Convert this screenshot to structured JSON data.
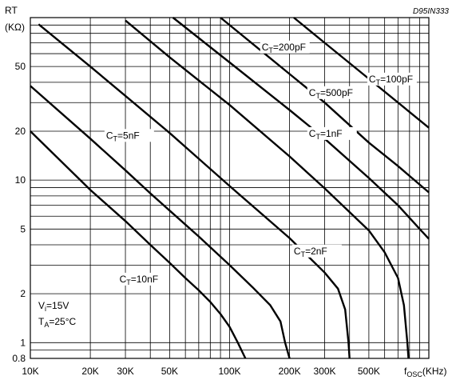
{
  "chart_data": {
    "type": "line",
    "reference": "D95IN333",
    "ylabel": {
      "main": "RT",
      "unit": "(KΩ)"
    },
    "xlabel": {
      "main": "f",
      "sub": "OSC",
      "unit": "(KHz)"
    },
    "x_scale": "log",
    "y_scale": "log",
    "xlim": [
      10,
      1000
    ],
    "ylim": [
      0.8,
      100
    ],
    "x_tick_labels": [
      {
        "v": 10,
        "t": "10K"
      },
      {
        "v": 20,
        "t": "20K"
      },
      {
        "v": 30,
        "t": "30K"
      },
      {
        "v": 50,
        "t": "50K"
      },
      {
        "v": 100,
        "t": "100K"
      },
      {
        "v": 200,
        "t": "200K"
      },
      {
        "v": 300,
        "t": "300K"
      },
      {
        "v": 500,
        "t": "500K"
      }
    ],
    "y_tick_labels": [
      {
        "v": 0.8,
        "t": "0.8"
      },
      {
        "v": 1,
        "t": "1"
      },
      {
        "v": 2,
        "t": "2"
      },
      {
        "v": 5,
        "t": "5"
      },
      {
        "v": 10,
        "t": "10"
      },
      {
        "v": 20,
        "t": "20"
      },
      {
        "v": 50,
        "t": "50"
      }
    ],
    "x_grid": [
      10,
      20,
      30,
      40,
      50,
      60,
      70,
      80,
      90,
      100,
      200,
      300,
      400,
      500,
      600,
      700,
      800,
      900,
      1000
    ],
    "y_grid": [
      0.8,
      0.9,
      1,
      2,
      3,
      4,
      5,
      6,
      7,
      8,
      9,
      10,
      20,
      30,
      40,
      50,
      60,
      70,
      80,
      90,
      100
    ],
    "series": [
      {
        "name": "C=10nF",
        "sub": "T",
        "base": "C",
        "rest": "=10nF",
        "points": [
          [
            10,
            20
          ],
          [
            20,
            8.7
          ],
          [
            30,
            5.6
          ],
          [
            40,
            4.0
          ],
          [
            50,
            3.1
          ],
          [
            60,
            2.5
          ],
          [
            70,
            2.1
          ],
          [
            80,
            1.78
          ],
          [
            90,
            1.5
          ],
          [
            100,
            1.25
          ],
          [
            110,
            1.0
          ],
          [
            120,
            0.8
          ]
        ],
        "label_at": [
          28,
          2.35
        ]
      },
      {
        "name": "C=5nF",
        "sub": "T",
        "base": "C",
        "rest": "=5nF",
        "points": [
          [
            10,
            38
          ],
          [
            20,
            18
          ],
          [
            30,
            11.5
          ],
          [
            40,
            8.3
          ],
          [
            50,
            6.5
          ],
          [
            70,
            4.5
          ],
          [
            100,
            3.0
          ],
          [
            130,
            2.2
          ],
          [
            160,
            1.7
          ],
          [
            180,
            1.35
          ],
          [
            190,
            1.0
          ],
          [
            200,
            0.8
          ]
        ],
        "label_at": [
          24,
          18
        ]
      },
      {
        "name": "C=2nF",
        "sub": "T",
        "base": "C",
        "rest": "=2nF",
        "points": [
          [
            11,
            91
          ],
          [
            20,
            50
          ],
          [
            30,
            33
          ],
          [
            50,
            19.5
          ],
          [
            100,
            9.2
          ],
          [
            200,
            4.4
          ],
          [
            300,
            2.7
          ],
          [
            350,
            2.15
          ],
          [
            380,
            1.6
          ],
          [
            395,
            1.0
          ],
          [
            400,
            0.8
          ]
        ],
        "label_at": [
          210,
          3.5
        ]
      },
      {
        "name": "C=1nF",
        "sub": "T",
        "base": "C",
        "rest": "=1nF",
        "points": [
          [
            30,
            96
          ],
          [
            50,
            57
          ],
          [
            100,
            29
          ],
          [
            200,
            14
          ],
          [
            300,
            8.9
          ],
          [
            500,
            4.9
          ],
          [
            600,
            3.6
          ],
          [
            700,
            2.5
          ],
          [
            750,
            1.7
          ],
          [
            780,
            1.0
          ],
          [
            790,
            0.8
          ]
        ],
        "label_at": [
          250,
          18.5
        ]
      },
      {
        "name": "C=500pF",
        "sub": "T",
        "base": "C",
        "rest": "=500pF",
        "points": [
          [
            52,
            100
          ],
          [
            100,
            53
          ],
          [
            200,
            27
          ],
          [
            300,
            18
          ],
          [
            500,
            10.3
          ],
          [
            700,
            7.0
          ],
          [
            900,
            5.0
          ],
          [
            1000,
            4.35
          ]
        ],
        "label_at": [
          250,
          33
        ]
      },
      {
        "name": "C=200pF",
        "sub": "T",
        "base": "C",
        "rest": "=200pF",
        "points": [
          [
            90,
            100
          ],
          [
            150,
            60
          ],
          [
            200,
            45
          ],
          [
            300,
            30
          ],
          [
            500,
            17
          ],
          [
            700,
            12.2
          ],
          [
            1000,
            8.4
          ]
        ],
        "label_at": [
          145,
          63
        ]
      },
      {
        "name": "C=100pF",
        "sub": "T",
        "base": "C",
        "rest": "=100pF",
        "points": [
          [
            210,
            100
          ],
          [
            300,
            70
          ],
          [
            500,
            42
          ],
          [
            700,
            30
          ],
          [
            1000,
            21
          ]
        ],
        "label_at": [
          500,
          40
        ]
      }
    ],
    "annotations": [
      {
        "base": "V",
        "sub": "i",
        "rest": "=15V"
      },
      {
        "base": "T",
        "sub": "A",
        "rest": "=25°C"
      }
    ],
    "grid": true,
    "colors": {
      "line": "#000000",
      "grid": "#000000",
      "background": "#ffffff"
    }
  }
}
